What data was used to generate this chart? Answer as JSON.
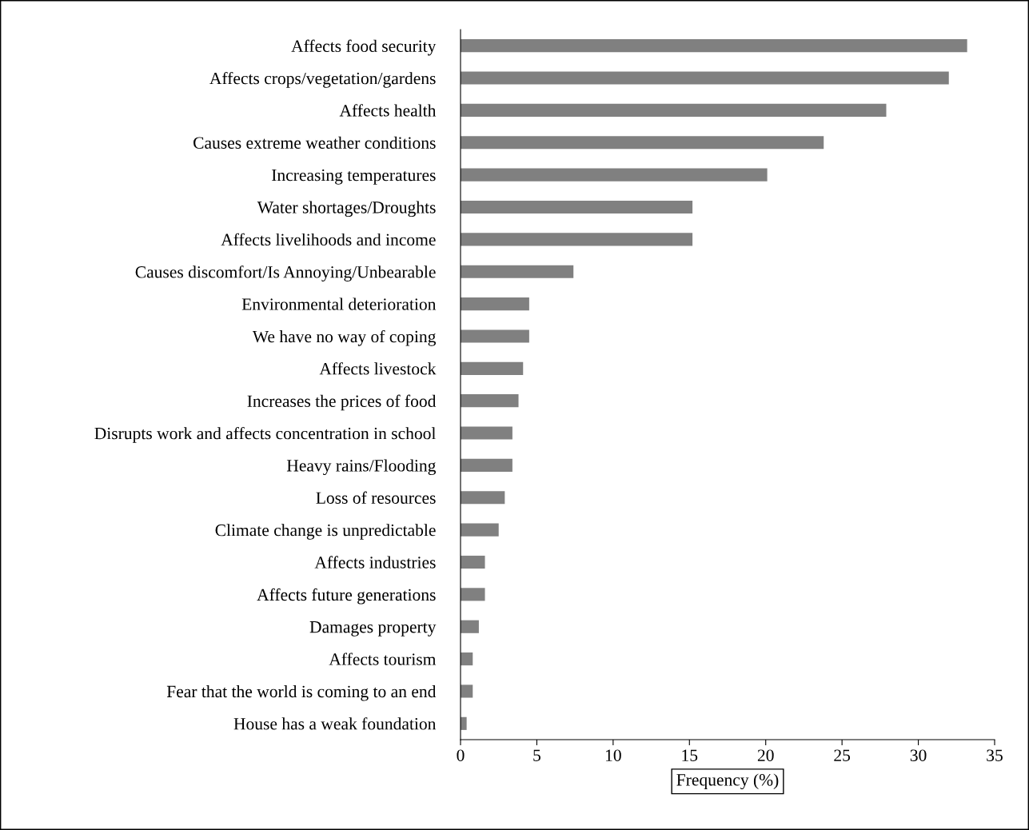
{
  "chart_data": {
    "type": "bar",
    "orientation": "horizontal",
    "xlabel": "Frequency (%)",
    "categories": [
      "Affects food security",
      "Affects crops/vegetation/gardens",
      "Affects health",
      "Causes extreme weather conditions",
      "Increasing temperatures",
      "Water shortages/Droughts",
      "Affects livelihoods and income",
      "Causes discomfort/Is Annoying/Unbearable",
      "Environmental deterioration",
      "We have no way of coping",
      "Affects livestock",
      "Increases the prices of food",
      "Disrupts work and affects concentration in school",
      "Heavy rains/Flooding",
      "Loss of resources",
      "Climate change is unpredictable",
      "Affects industries",
      "Affects future generations",
      "Damages property",
      "Affects tourism",
      "Fear that the world is coming to an end",
      "House has a weak foundation"
    ],
    "values": [
      33.2,
      32.0,
      27.9,
      23.8,
      20.1,
      15.2,
      15.2,
      7.4,
      4.5,
      4.5,
      4.1,
      3.8,
      3.4,
      3.4,
      2.9,
      2.5,
      1.6,
      1.6,
      1.2,
      0.8,
      0.8,
      0.4
    ],
    "color": "#808080",
    "xlim": [
      0,
      35
    ],
    "xticks": [
      0,
      5,
      10,
      15,
      20,
      25,
      30,
      35
    ],
    "grid": false,
    "legend": false
  }
}
